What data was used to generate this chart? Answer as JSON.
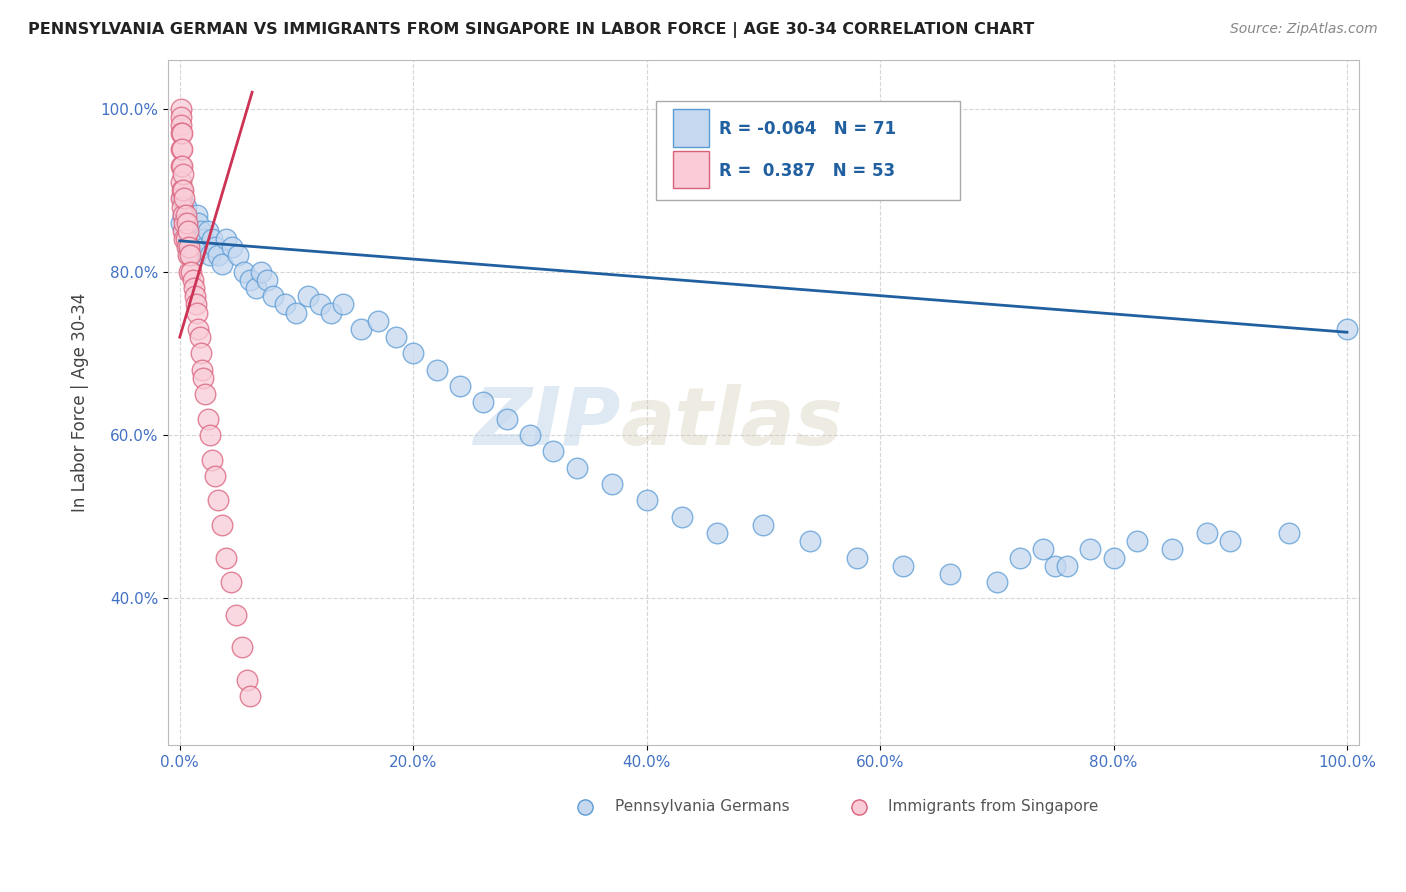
{
  "title": "PENNSYLVANIA GERMAN VS IMMIGRANTS FROM SINGAPORE IN LABOR FORCE | AGE 30-34 CORRELATION CHART",
  "source": "Source: ZipAtlas.com",
  "ylabel": "In Labor Force | Age 30-34",
  "xlabel": "",
  "watermark_zip": "ZIP",
  "watermark_atlas": "atlas",
  "legend_blue_R": "-0.064",
  "legend_blue_N": "71",
  "legend_pink_R": "0.387",
  "legend_pink_N": "53",
  "legend_blue_label": "Pennsylvania Germans",
  "legend_pink_label": "Immigrants from Singapore",
  "blue_color": "#c5d8f0",
  "blue_edge": "#5b9bd5",
  "blue_line_color": "#2060a0",
  "pink_color": "#f9ccd8",
  "pink_edge": "#d9607a",
  "pink_line_color": "#cc3355",
  "grid_color": "#cccccc",
  "background": "#ffffff",
  "blue_x": [
    0.001,
    0.002,
    0.003,
    0.004,
    0.005,
    0.006,
    0.007,
    0.008,
    0.009,
    0.01,
    0.012,
    0.013,
    0.015,
    0.016,
    0.018,
    0.02,
    0.022,
    0.024,
    0.026,
    0.028,
    0.03,
    0.033,
    0.036,
    0.04,
    0.045,
    0.05,
    0.055,
    0.06,
    0.065,
    0.07,
    0.075,
    0.08,
    0.09,
    0.1,
    0.11,
    0.12,
    0.13,
    0.14,
    0.155,
    0.17,
    0.185,
    0.2,
    0.22,
    0.24,
    0.26,
    0.28,
    0.3,
    0.32,
    0.34,
    0.37,
    0.4,
    0.43,
    0.46,
    0.5,
    0.54,
    0.58,
    0.62,
    0.66,
    0.7,
    0.75,
    0.8,
    0.85,
    0.9,
    0.95,
    1.0,
    0.82,
    0.88,
    0.78,
    0.76,
    0.74,
    0.72
  ],
  "blue_y": [
    0.86,
    0.89,
    0.87,
    0.85,
    0.88,
    0.86,
    0.83,
    0.85,
    0.82,
    0.84,
    0.84,
    0.82,
    0.87,
    0.86,
    0.85,
    0.84,
    0.83,
    0.85,
    0.82,
    0.84,
    0.83,
    0.82,
    0.81,
    0.84,
    0.83,
    0.82,
    0.8,
    0.79,
    0.78,
    0.8,
    0.79,
    0.77,
    0.76,
    0.75,
    0.77,
    0.76,
    0.75,
    0.76,
    0.73,
    0.74,
    0.72,
    0.7,
    0.68,
    0.66,
    0.64,
    0.62,
    0.6,
    0.58,
    0.56,
    0.54,
    0.52,
    0.5,
    0.48,
    0.49,
    0.47,
    0.45,
    0.44,
    0.43,
    0.42,
    0.44,
    0.45,
    0.46,
    0.47,
    0.48,
    0.73,
    0.47,
    0.48,
    0.46,
    0.44,
    0.46,
    0.45
  ],
  "pink_x": [
    0.001,
    0.001,
    0.001,
    0.001,
    0.001,
    0.001,
    0.001,
    0.001,
    0.002,
    0.002,
    0.002,
    0.002,
    0.002,
    0.003,
    0.003,
    0.003,
    0.003,
    0.004,
    0.004,
    0.004,
    0.005,
    0.005,
    0.006,
    0.006,
    0.007,
    0.007,
    0.008,
    0.008,
    0.009,
    0.01,
    0.011,
    0.012,
    0.013,
    0.014,
    0.015,
    0.016,
    0.017,
    0.018,
    0.019,
    0.02,
    0.022,
    0.024,
    0.026,
    0.028,
    0.03,
    0.033,
    0.036,
    0.04,
    0.044,
    0.048,
    0.053,
    0.058,
    0.06
  ],
  "pink_y": [
    1.0,
    0.99,
    0.98,
    0.97,
    0.95,
    0.93,
    0.91,
    0.89,
    0.97,
    0.95,
    0.93,
    0.9,
    0.88,
    0.92,
    0.9,
    0.87,
    0.85,
    0.89,
    0.86,
    0.84,
    0.87,
    0.84,
    0.86,
    0.83,
    0.85,
    0.82,
    0.83,
    0.8,
    0.82,
    0.8,
    0.79,
    0.78,
    0.77,
    0.76,
    0.75,
    0.73,
    0.72,
    0.7,
    0.68,
    0.67,
    0.65,
    0.62,
    0.6,
    0.57,
    0.55,
    0.52,
    0.49,
    0.45,
    0.42,
    0.38,
    0.34,
    0.3,
    0.28
  ],
  "xlim": [
    -0.01,
    1.01
  ],
  "ylim": [
    0.22,
    1.06
  ],
  "xticks": [
    0.0,
    0.2,
    0.4,
    0.6,
    0.8,
    1.0
  ],
  "yticks": [
    0.4,
    0.6,
    0.8,
    1.0
  ],
  "xtick_labels": [
    "0.0%",
    "20.0%",
    "40.0%",
    "60.0%",
    "80.0%",
    "100.0%"
  ],
  "ytick_labels": [
    "40.0%",
    "60.0%",
    "80.0%",
    "100.0%"
  ],
  "blue_trend_x": [
    0.0,
    1.0
  ],
  "blue_trend_y": [
    0.838,
    0.726
  ],
  "pink_trend_x": [
    0.0,
    0.062
  ],
  "pink_trend_y": [
    0.72,
    1.02
  ]
}
